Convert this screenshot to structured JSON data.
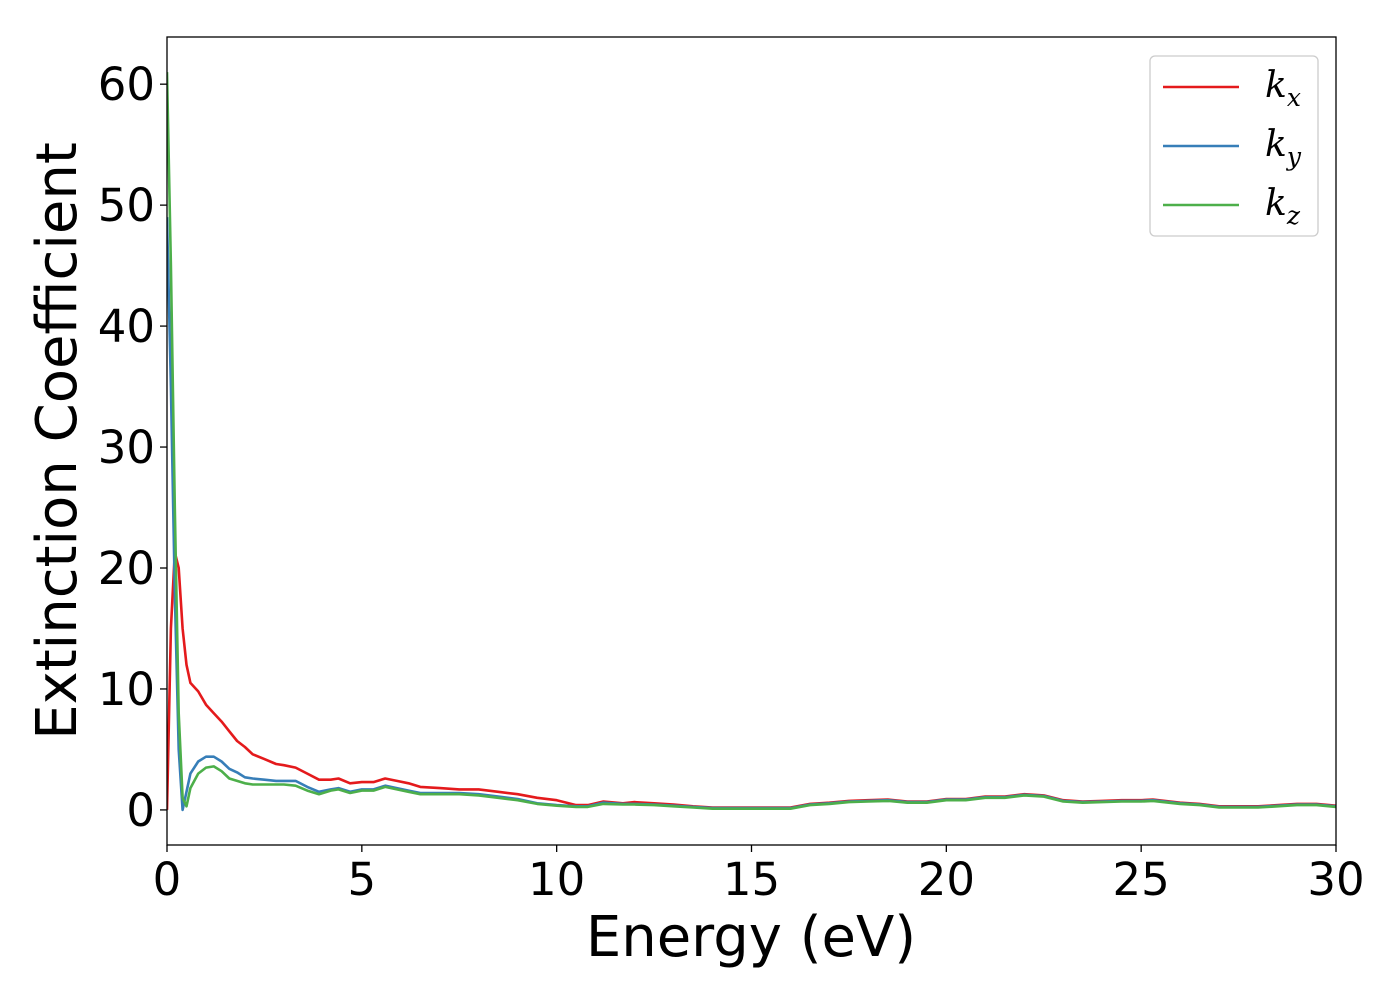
{
  "chart_data": {
    "type": "line",
    "title": "",
    "xlabel": "Energy (eV)",
    "ylabel": "Extinction Coefficient",
    "xlim": [
      0,
      30
    ],
    "ylim": [
      -2.9,
      63.9
    ],
    "xticks": [
      0,
      5,
      10,
      15,
      20,
      25,
      30
    ],
    "yticks": [
      0,
      10,
      20,
      30,
      40,
      50,
      60
    ],
    "grid": false,
    "legend_position": "top-right",
    "x": [
      0,
      0.1,
      0.2,
      0.3,
      0.4,
      0.5,
      0.6,
      0.8,
      1.0,
      1.2,
      1.4,
      1.6,
      1.8,
      2.0,
      2.2,
      2.5,
      2.8,
      3.0,
      3.3,
      3.6,
      3.9,
      4.2,
      4.4,
      4.7,
      5.0,
      5.3,
      5.6,
      5.9,
      6.2,
      6.5,
      7.0,
      7.5,
      8.0,
      8.5,
      9.0,
      9.5,
      10.0,
      10.5,
      10.8,
      11.2,
      11.7,
      12.0,
      12.5,
      13.0,
      13.5,
      14.0,
      15.0,
      16.0,
      16.5,
      17.0,
      17.5,
      18.0,
      18.5,
      19.0,
      19.5,
      20.0,
      20.5,
      21.0,
      21.5,
      22.0,
      22.5,
      23.0,
      23.5,
      24.0,
      24.5,
      25.0,
      25.3,
      26.0,
      26.5,
      27.0,
      28.0,
      29.0,
      29.5,
      30.0
    ],
    "series": [
      {
        "name": "k_x",
        "color": "#e41a1c",
        "values": [
          0,
          15,
          21.3,
          20,
          15,
          12,
          10.5,
          9.8,
          8.7,
          8,
          7.3,
          6.5,
          5.7,
          5.2,
          4.6,
          4.2,
          3.8,
          3.7,
          3.5,
          3.0,
          2.5,
          2.5,
          2.6,
          2.2,
          2.3,
          2.3,
          2.6,
          2.4,
          2.2,
          1.9,
          1.8,
          1.7,
          1.7,
          1.5,
          1.3,
          1.0,
          0.8,
          0.4,
          0.4,
          0.7,
          0.55,
          0.65,
          0.55,
          0.45,
          0.3,
          0.2,
          0.2,
          0.2,
          0.5,
          0.6,
          0.75,
          0.8,
          0.85,
          0.7,
          0.7,
          0.9,
          0.9,
          1.1,
          1.1,
          1.3,
          1.2,
          0.8,
          0.7,
          0.75,
          0.8,
          0.8,
          0.85,
          0.6,
          0.5,
          0.3,
          0.3,
          0.5,
          0.5,
          0.35
        ]
      },
      {
        "name": "k_y",
        "color": "#377eb8",
        "values": [
          49,
          35,
          18,
          5,
          0,
          1.5,
          3,
          4,
          4.4,
          4.4,
          4.0,
          3.4,
          3.1,
          2.7,
          2.6,
          2.5,
          2.4,
          2.4,
          2.4,
          1.9,
          1.5,
          1.7,
          1.8,
          1.5,
          1.7,
          1.7,
          2.0,
          1.8,
          1.6,
          1.4,
          1.4,
          1.4,
          1.3,
          1.1,
          0.9,
          0.55,
          0.4,
          0.3,
          0.3,
          0.6,
          0.5,
          0.5,
          0.45,
          0.35,
          0.25,
          0.15,
          0.15,
          0.15,
          0.45,
          0.55,
          0.7,
          0.75,
          0.8,
          0.65,
          0.65,
          0.85,
          0.85,
          1.05,
          1.05,
          1.25,
          1.15,
          0.75,
          0.65,
          0.7,
          0.75,
          0.75,
          0.8,
          0.55,
          0.45,
          0.25,
          0.25,
          0.45,
          0.45,
          0.3
        ]
      },
      {
        "name": "k_z",
        "color": "#4daf4a",
        "values": [
          61,
          45,
          25,
          8,
          1,
          0.3,
          1.8,
          3,
          3.5,
          3.6,
          3.2,
          2.6,
          2.4,
          2.2,
          2.1,
          2.1,
          2.1,
          2.1,
          2.0,
          1.6,
          1.3,
          1.6,
          1.7,
          1.4,
          1.6,
          1.6,
          1.9,
          1.7,
          1.5,
          1.3,
          1.3,
          1.3,
          1.2,
          1.0,
          0.8,
          0.5,
          0.35,
          0.25,
          0.25,
          0.5,
          0.45,
          0.45,
          0.4,
          0.3,
          0.2,
          0.1,
          0.1,
          0.1,
          0.4,
          0.5,
          0.65,
          0.7,
          0.75,
          0.6,
          0.6,
          0.8,
          0.8,
          1.0,
          1.0,
          1.2,
          1.1,
          0.7,
          0.6,
          0.65,
          0.7,
          0.7,
          0.75,
          0.5,
          0.4,
          0.2,
          0.2,
          0.4,
          0.4,
          0.25
        ]
      }
    ]
  }
}
